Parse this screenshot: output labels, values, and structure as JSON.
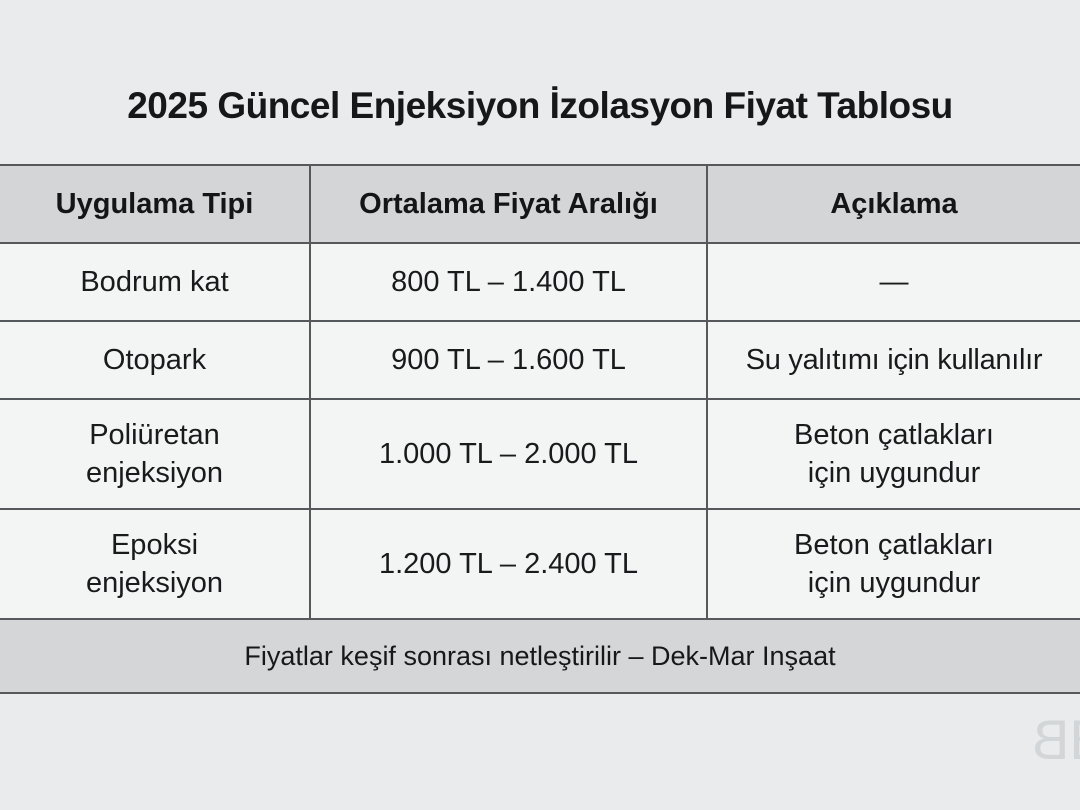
{
  "chart_data": {
    "type": "table",
    "title": "2025 Güncel Enjeksiyon İzolasyon Fiyat Tablosu",
    "columns": [
      "Uygulama Tipi",
      "Ortalama Fiyat Aralığı",
      "Açıklama"
    ],
    "rows": [
      [
        "Bodrum kat",
        "800 TL – 1.400 TL",
        "—"
      ],
      [
        "Otopark",
        "900 TL – 1.600 TL",
        "Su yalıtımı için kullanılır"
      ],
      [
        "Poliüretan enjeksiyon",
        "1.000 TL – 2.000 TL",
        "Beton çatlakları için uygundur"
      ],
      [
        "Epoksi enjeksiyon",
        "1.200 TL – 2.400 TL",
        "Beton çatlakları için uygundur"
      ]
    ],
    "footer_note": "Fiyatlar keşif sonrası netleştirilir – Dek-Mar Inşaat",
    "layout_hints": {
      "grid": "on",
      "header_row": true,
      "currency": "TL"
    }
  },
  "watermark": {
    "glyph": "B",
    "name": "bb-logo-watermark"
  },
  "colors": {
    "page_background": "#e9ebec",
    "row_background": "#f3f4f4",
    "header_background": "#d3d5d6",
    "footer_background": "#d4d6d7",
    "border": "#56595b",
    "text": "#191a1b",
    "watermark": "#d3d6d8"
  }
}
